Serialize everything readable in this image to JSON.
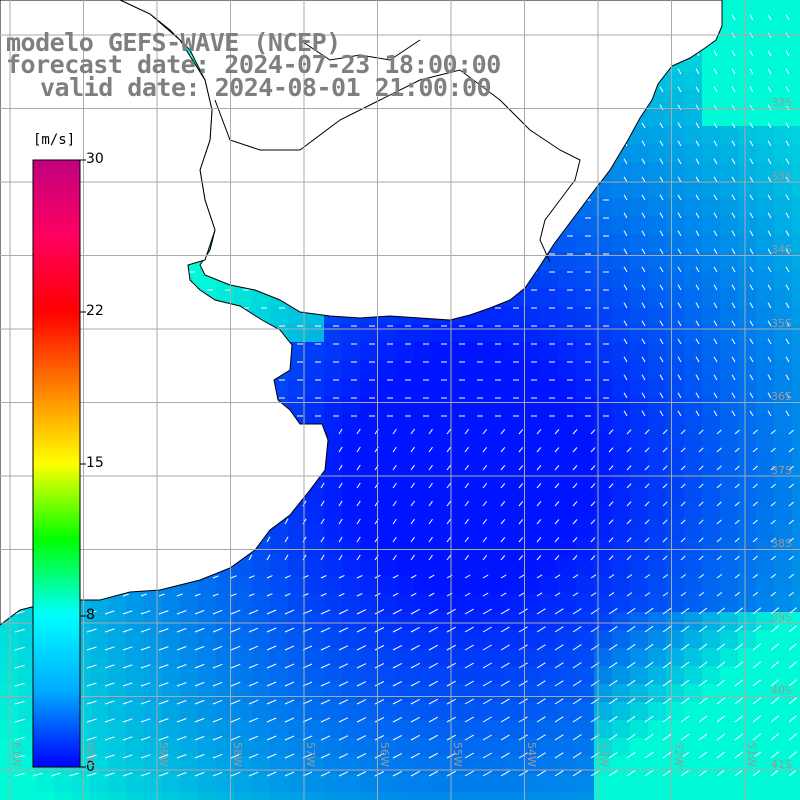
{
  "title": {
    "model": "modelo GEFS-WAVE (NCEP)",
    "forecast": "forecast date: 2024-07-23 18:00:00",
    "valid": "valid date: 2024-08-01 21:00:00"
  },
  "colorbar": {
    "unit": "[m/s]",
    "ticks": [
      "30",
      "22",
      "15",
      "8",
      "0"
    ],
    "range": [
      0,
      30
    ],
    "colors": [
      "#0000ff",
      "#00aaff",
      "#00ffff",
      "#00ff00",
      "#ffff00",
      "#ff8000",
      "#ff0000",
      "#ff0060",
      "#c00080"
    ]
  },
  "lat_labels": [
    "32S",
    "33S",
    "34S",
    "35S",
    "36S",
    "37S",
    "38S",
    "39S",
    "40S",
    "41S"
  ],
  "lon_labels": [
    "61W",
    "60W",
    "59W",
    "58W",
    "57W",
    "56W",
    "55W",
    "54W",
    "53W",
    "52W",
    "51W"
  ],
  "map": {
    "land_color": "#ffffff",
    "coast_color": "#000000",
    "grid_color": "#aaaaaa"
  }
}
